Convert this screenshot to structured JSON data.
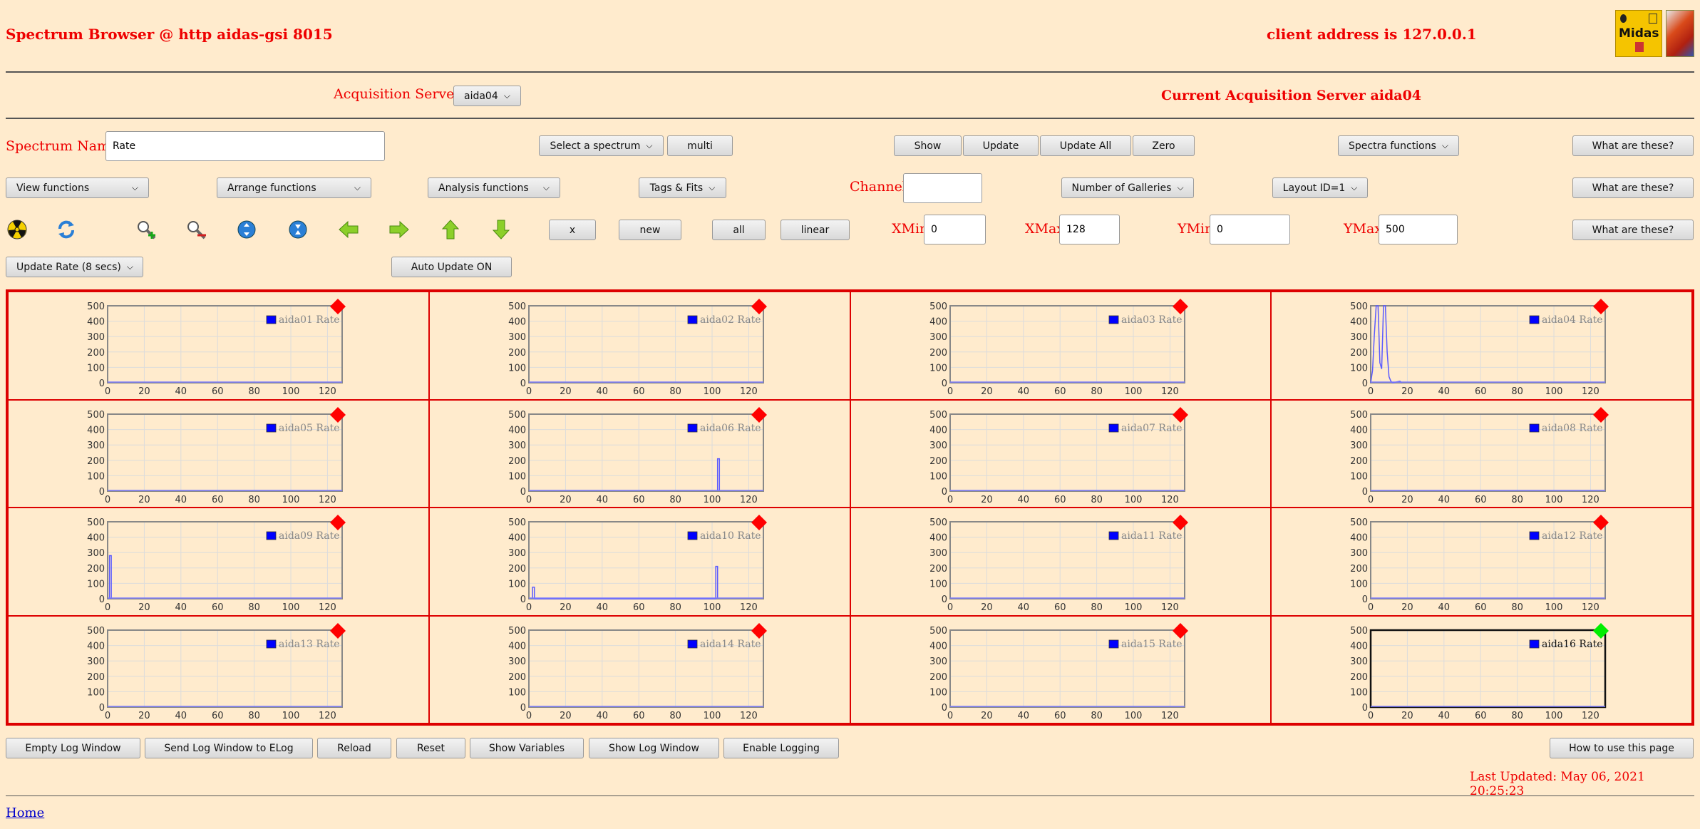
{
  "header": {
    "title": "Spectrum Browser @ http aidas-gsi 8015",
    "client": "client address is 127.0.0.1",
    "logo_text": "Midas"
  },
  "servers": {
    "label": "Acquisition Servers",
    "selected": "aida04",
    "current": "Current Acquisition Server aida04"
  },
  "row1": {
    "spectrum_label": "Spectrum Name:",
    "spectrum_value": "Rate",
    "select_spectrum": "Select a spectrum",
    "multi": "multi",
    "show": "Show",
    "update": "Update",
    "update_all": "Update All",
    "zero": "Zero",
    "spectra_functions": "Spectra functions",
    "help": "What are these?"
  },
  "row2": {
    "view": "View functions",
    "arrange": "Arrange functions",
    "analysis": "Analysis functions",
    "tags": "Tags & Fits",
    "channel_label": "Channel:",
    "channel_value": "",
    "galleries": "Number of Galleries",
    "layout": "Layout ID=1",
    "help": "What are these?"
  },
  "row3": {
    "x": "x",
    "new": "new",
    "all": "all",
    "linear": "linear",
    "xmin_label": "XMin",
    "xmin": "0",
    "xmax_label": "XMax",
    "xmax": "128",
    "ymin_label": "YMin",
    "ymin": "0",
    "ymax_label": "YMax",
    "ymax": "500",
    "help": "What are these?",
    "icons": [
      "radiation-icon",
      "refresh-icon",
      "zoom-in-icon",
      "zoom-out-icon",
      "expand-icon",
      "contract-icon",
      "left-arrow-icon",
      "right-arrow-icon",
      "up-arrow-icon",
      "down-arrow-icon"
    ]
  },
  "row4": {
    "update_rate": "Update Rate (8 secs)",
    "auto_update": "Auto Update ON"
  },
  "chart_data": {
    "type": "line",
    "xlim": [
      0,
      128
    ],
    "ylim": [
      0,
      500
    ],
    "x_ticks": [
      "0",
      "20",
      "40",
      "60",
      "80",
      "100",
      "120"
    ],
    "y_ticks": [
      "0",
      "100",
      "200",
      "300",
      "400",
      "500"
    ],
    "grid": true,
    "legend_position": "top-right",
    "series_color": "#0000ff",
    "status_colors": {
      "stale": "#ff0000",
      "active": "#00ee00"
    },
    "panels": [
      {
        "name": "aida01 Rate",
        "status": "stale",
        "points": []
      },
      {
        "name": "aida02 Rate",
        "status": "stale",
        "points": [
          [
            103,
            5
          ],
          [
            104,
            0
          ]
        ]
      },
      {
        "name": "aida03 Rate",
        "status": "stale",
        "points": []
      },
      {
        "name": "aida04 Rate",
        "status": "stale",
        "points": [
          [
            0,
            0
          ],
          [
            1,
            80
          ],
          [
            2,
            310
          ],
          [
            3,
            500
          ],
          [
            4,
            500
          ],
          [
            5,
            130
          ],
          [
            6,
            90
          ],
          [
            7,
            500
          ],
          [
            8,
            500
          ],
          [
            9,
            200
          ],
          [
            10,
            40
          ],
          [
            11,
            10
          ],
          [
            12,
            0
          ],
          [
            16,
            10
          ],
          [
            17,
            0
          ]
        ]
      },
      {
        "name": "aida05 Rate",
        "status": "stale",
        "points": []
      },
      {
        "name": "aida06 Rate",
        "status": "stale",
        "points": [
          [
            103,
            0
          ],
          [
            103,
            210
          ],
          [
            104,
            210
          ],
          [
            104,
            0
          ]
        ]
      },
      {
        "name": "aida07 Rate",
        "status": "stale",
        "points": []
      },
      {
        "name": "aida08 Rate",
        "status": "stale",
        "points": []
      },
      {
        "name": "aida09 Rate",
        "status": "stale",
        "points": [
          [
            1,
            0
          ],
          [
            1,
            280
          ],
          [
            2,
            280
          ],
          [
            2,
            0
          ]
        ]
      },
      {
        "name": "aida10 Rate",
        "status": "stale",
        "points": [
          [
            2,
            0
          ],
          [
            2,
            75
          ],
          [
            3,
            75
          ],
          [
            3,
            0
          ],
          [
            102,
            0
          ],
          [
            102,
            210
          ],
          [
            103,
            210
          ],
          [
            103,
            0
          ]
        ]
      },
      {
        "name": "aida11 Rate",
        "status": "stale",
        "points": []
      },
      {
        "name": "aida12 Rate",
        "status": "stale",
        "points": []
      },
      {
        "name": "aida13 Rate",
        "status": "stale",
        "points": []
      },
      {
        "name": "aida14 Rate",
        "status": "stale",
        "points": []
      },
      {
        "name": "aida15 Rate",
        "status": "stale",
        "points": []
      },
      {
        "name": "aida16 Rate",
        "status": "active",
        "points": []
      }
    ]
  },
  "footer": {
    "empty_log": "Empty Log Window",
    "send_log": "Send Log Window to ELog",
    "reload": "Reload",
    "reset": "Reset",
    "show_vars": "Show Variables",
    "show_log": "Show Log Window",
    "enable_logging": "Enable Logging",
    "how_to": "How to use this page",
    "last_updated": "Last Updated: May 06, 2021 20:25:23",
    "home": "Home"
  }
}
